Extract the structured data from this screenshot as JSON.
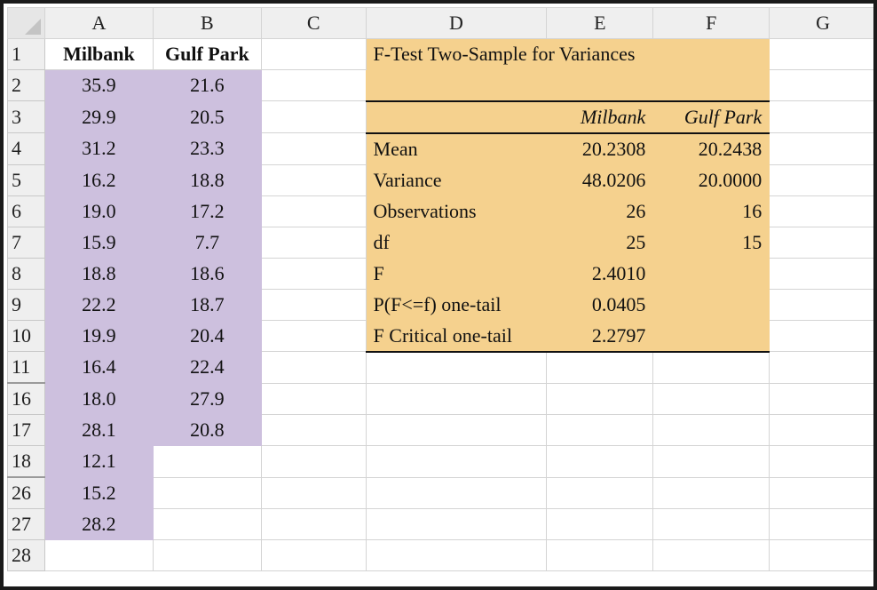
{
  "columns": [
    "A",
    "B",
    "C",
    "D",
    "E",
    "F",
    "G"
  ],
  "headers": {
    "col_a": "Milbank",
    "col_b": "Gulf Park"
  },
  "rows": [
    {
      "num": "2",
      "a": "35.9",
      "b": "21.6"
    },
    {
      "num": "3",
      "a": "29.9",
      "b": "20.5"
    },
    {
      "num": "4",
      "a": "31.2",
      "b": "23.3"
    },
    {
      "num": "5",
      "a": "16.2",
      "b": "18.8"
    },
    {
      "num": "6",
      "a": "19.0",
      "b": "17.2"
    },
    {
      "num": "7",
      "a": "15.9",
      "b": "7.7"
    },
    {
      "num": "8",
      "a": "18.8",
      "b": "18.6"
    },
    {
      "num": "9",
      "a": "22.2",
      "b": "18.7"
    },
    {
      "num": "10",
      "a": "19.9",
      "b": "20.4"
    },
    {
      "num": "11",
      "a": "16.4",
      "b": "22.4"
    },
    {
      "num": "16",
      "a": "18.0",
      "b": "27.9"
    },
    {
      "num": "17",
      "a": "28.1",
      "b": "20.8"
    },
    {
      "num": "18",
      "a": "12.1",
      "b": ""
    },
    {
      "num": "26",
      "a": "15.2",
      "b": ""
    },
    {
      "num": "27",
      "a": "28.2",
      "b": ""
    },
    {
      "num": "28",
      "a": "",
      "b": ""
    }
  ],
  "ftest": {
    "title": "F-Test Two-Sample for Variances",
    "col1": "Milbank",
    "col2": "Gulf Park",
    "stats": [
      {
        "label": "Mean",
        "v1": "20.2308",
        "v2": "20.2438"
      },
      {
        "label": "Variance",
        "v1": "48.0206",
        "v2": "20.0000"
      },
      {
        "label": "Observations",
        "v1": "26",
        "v2": "16"
      },
      {
        "label": "df",
        "v1": "25",
        "v2": "15"
      },
      {
        "label": "F",
        "v1": "2.4010",
        "v2": ""
      },
      {
        "label": "P(F<=f) one-tail",
        "v1": "0.0405",
        "v2": ""
      },
      {
        "label": "F Critical one-tail",
        "v1": "2.2797",
        "v2": ""
      }
    ]
  },
  "colors": {
    "data_fill": "#cdc0de",
    "output_fill": "#f5d18e",
    "header_fill": "#efefef"
  }
}
